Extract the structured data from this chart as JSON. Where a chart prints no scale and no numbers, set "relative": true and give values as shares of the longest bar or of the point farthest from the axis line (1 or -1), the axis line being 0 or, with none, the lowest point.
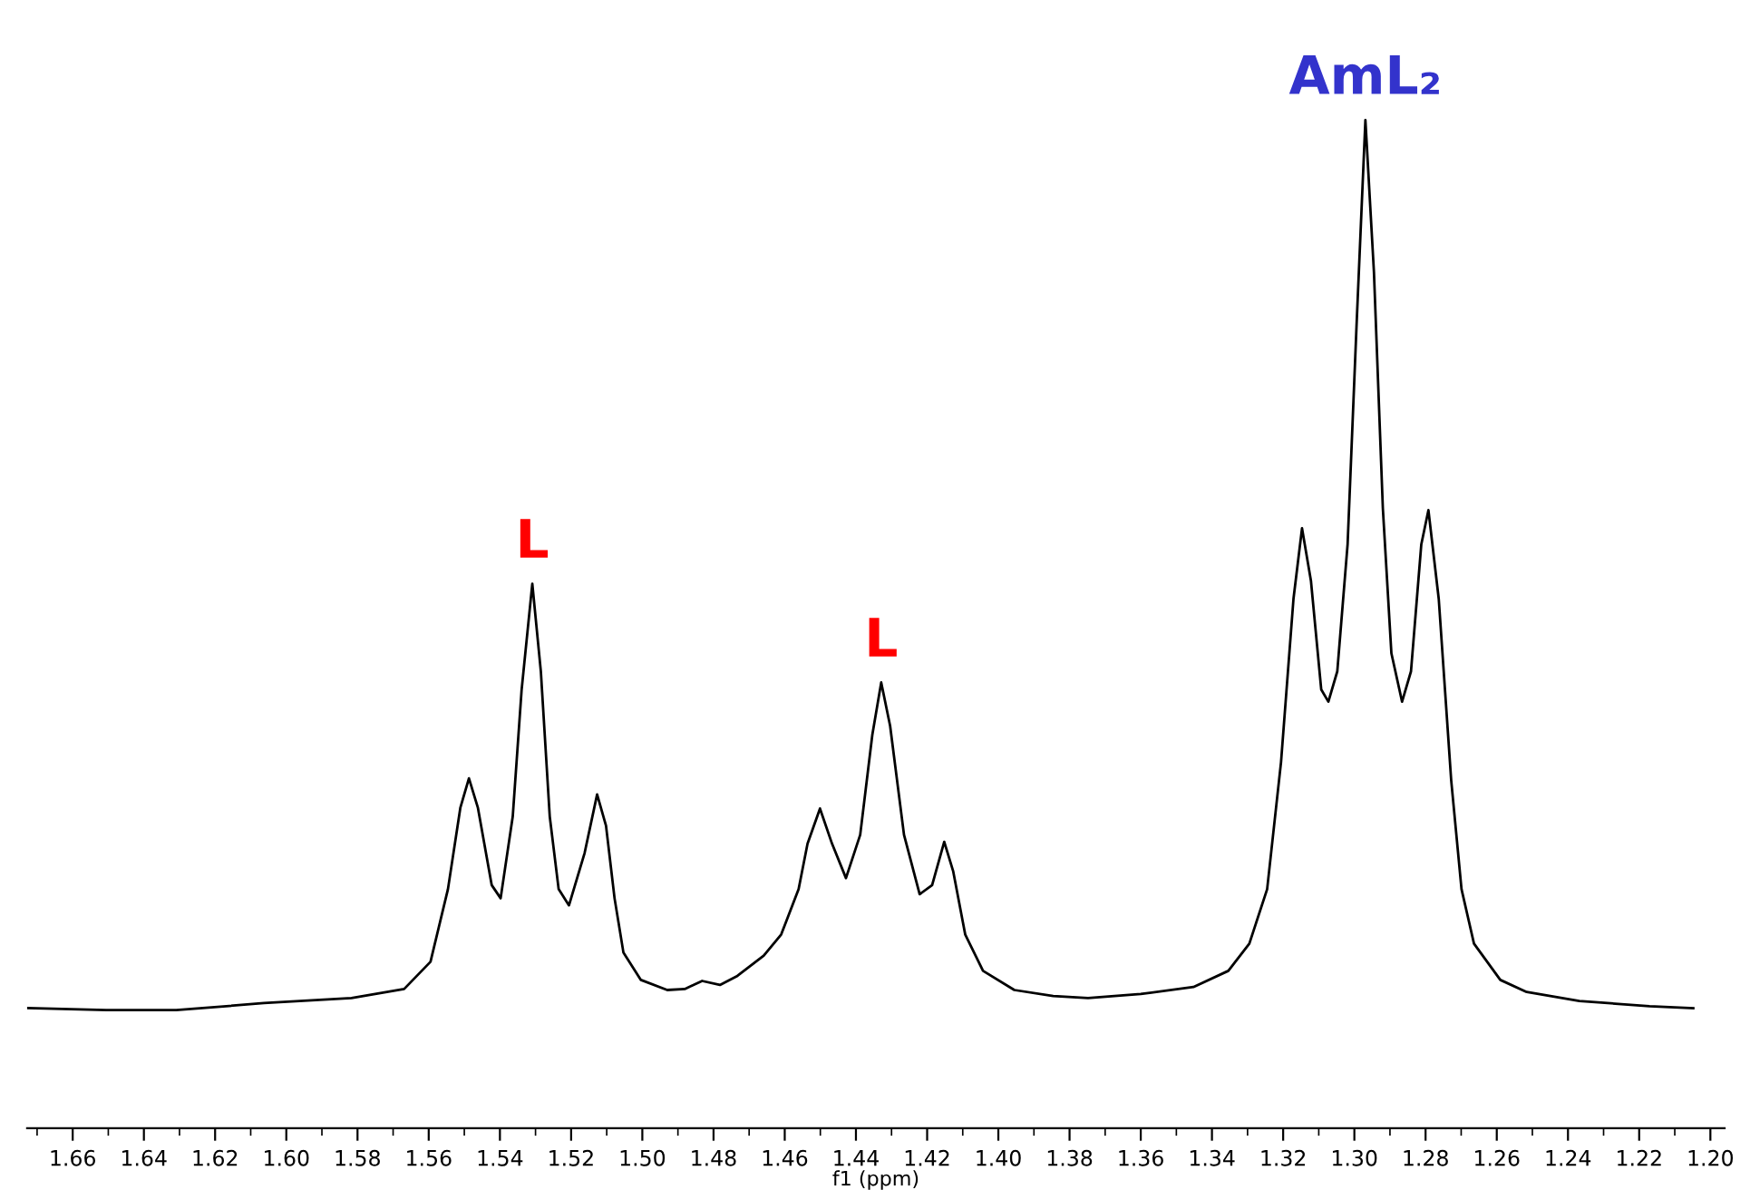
{
  "chart_data": {
    "type": "line",
    "relative": true,
    "xlabel": "f1 (ppm)",
    "xlim": [
      1.6728,
      1.196
    ],
    "xticks": [
      1.66,
      1.64,
      1.62,
      {
        "value": 1.6,
        "label": "1.60"
      },
      1.58,
      1.56,
      1.54,
      1.52,
      {
        "value": 1.5,
        "label": "1.50"
      },
      1.48,
      1.46,
      1.44,
      1.42,
      {
        "value": 1.4,
        "label": "1.40"
      },
      1.38,
      1.36,
      1.34,
      1.32,
      {
        "value": 1.3,
        "label": "1.30"
      },
      1.28,
      1.26,
      1.24,
      1.22,
      {
        "value": 1.2,
        "label": "1.20"
      },
      {
        "value": 1.67,
        "label": null
      },
      {
        "value": 1.65,
        "label": null
      },
      {
        "value": 1.63,
        "label": null
      },
      {
        "value": 1.61,
        "label": null
      },
      {
        "value": 1.59,
        "label": null
      },
      {
        "value": 1.57,
        "label": null
      },
      {
        "value": 1.55,
        "label": null
      },
      {
        "value": 1.53,
        "label": null
      },
      {
        "value": 1.51,
        "label": null
      },
      {
        "value": 1.49,
        "label": null
      },
      {
        "value": 1.47,
        "label": null
      },
      {
        "value": 1.45,
        "label": null
      },
      {
        "value": 1.43,
        "label": null
      },
      {
        "value": 1.41,
        "label": null
      },
      {
        "value": 1.39,
        "label": null
      },
      {
        "value": 1.37,
        "label": null
      },
      {
        "value": 1.35,
        "label": null
      },
      {
        "value": 1.33,
        "label": null
      },
      {
        "value": 1.31,
        "label": null
      },
      {
        "value": 1.29,
        "label": null
      },
      {
        "value": 1.27,
        "label": null
      },
      {
        "value": 1.25,
        "label": null
      },
      {
        "value": 1.23,
        "label": null
      },
      {
        "value": 1.21,
        "label": null
      }
    ],
    "grid": false,
    "legend": false,
    "marker": "none",
    "line_style": "solid",
    "series": [
      {
        "color": "#000000",
        "x": [
          1.6728,
          1.6506,
          1.6309,
          1.6063,
          1.5817,
          1.5669,
          1.5595,
          1.5546,
          1.5511,
          1.5487,
          1.5462,
          1.5423,
          1.5398,
          1.5364,
          1.5339,
          1.5309,
          1.5285,
          1.526,
          1.5235,
          1.5206,
          1.5162,
          1.5127,
          1.5102,
          1.5078,
          1.5053,
          1.5004,
          1.493,
          1.4881,
          1.4832,
          1.4782,
          1.4733,
          1.4659,
          1.461,
          1.4561,
          1.4536,
          1.4501,
          1.4467,
          1.4428,
          1.4388,
          1.4354,
          1.4329,
          1.4304,
          1.4265,
          1.4221,
          1.4186,
          1.4152,
          1.4127,
          1.4093,
          1.4043,
          1.3955,
          1.3846,
          1.3748,
          1.36,
          1.3452,
          1.3354,
          1.3295,
          1.3245,
          1.3206,
          1.3171,
          1.3147,
          1.3122,
          1.3093,
          1.3073,
          1.3048,
          1.3019,
          1.2994,
          1.2969,
          1.2945,
          1.292,
          1.2896,
          1.2866,
          1.2841,
          1.2812,
          1.2792,
          1.2763,
          1.2728,
          1.2699,
          1.2664,
          1.259,
          1.2516,
          1.2368,
          1.2171,
          1.2048
        ],
        "values": [
          0.119,
          0.117,
          0.117,
          0.124,
          0.129,
          0.138,
          0.165,
          0.237,
          0.318,
          0.347,
          0.318,
          0.241,
          0.228,
          0.309,
          0.435,
          0.54,
          0.453,
          0.309,
          0.237,
          0.221,
          0.273,
          0.331,
          0.3,
          0.228,
          0.174,
          0.147,
          0.137,
          0.138,
          0.146,
          0.142,
          0.151,
          0.171,
          0.192,
          0.237,
          0.282,
          0.317,
          0.282,
          0.248,
          0.291,
          0.39,
          0.442,
          0.399,
          0.291,
          0.232,
          0.241,
          0.284,
          0.255,
          0.192,
          0.156,
          0.137,
          0.131,
          0.129,
          0.133,
          0.14,
          0.156,
          0.183,
          0.237,
          0.363,
          0.525,
          0.595,
          0.543,
          0.435,
          0.423,
          0.453,
          0.579,
          0.795,
          1,
          0.849,
          0.615,
          0.471,
          0.423,
          0.453,
          0.579,
          0.613,
          0.525,
          0.345,
          0.237,
          0.183,
          0.147,
          0.135,
          0.126,
          0.121,
          0.119
        ]
      }
    ],
    "annotations": [
      {
        "text": "L",
        "x": 1.5309,
        "y": 0.54
      },
      {
        "text": "L",
        "x": 1.4329,
        "y": 0.442
      },
      {
        "text": "AmL₂",
        "x": 1.2969,
        "y": 1
      }
    ]
  }
}
